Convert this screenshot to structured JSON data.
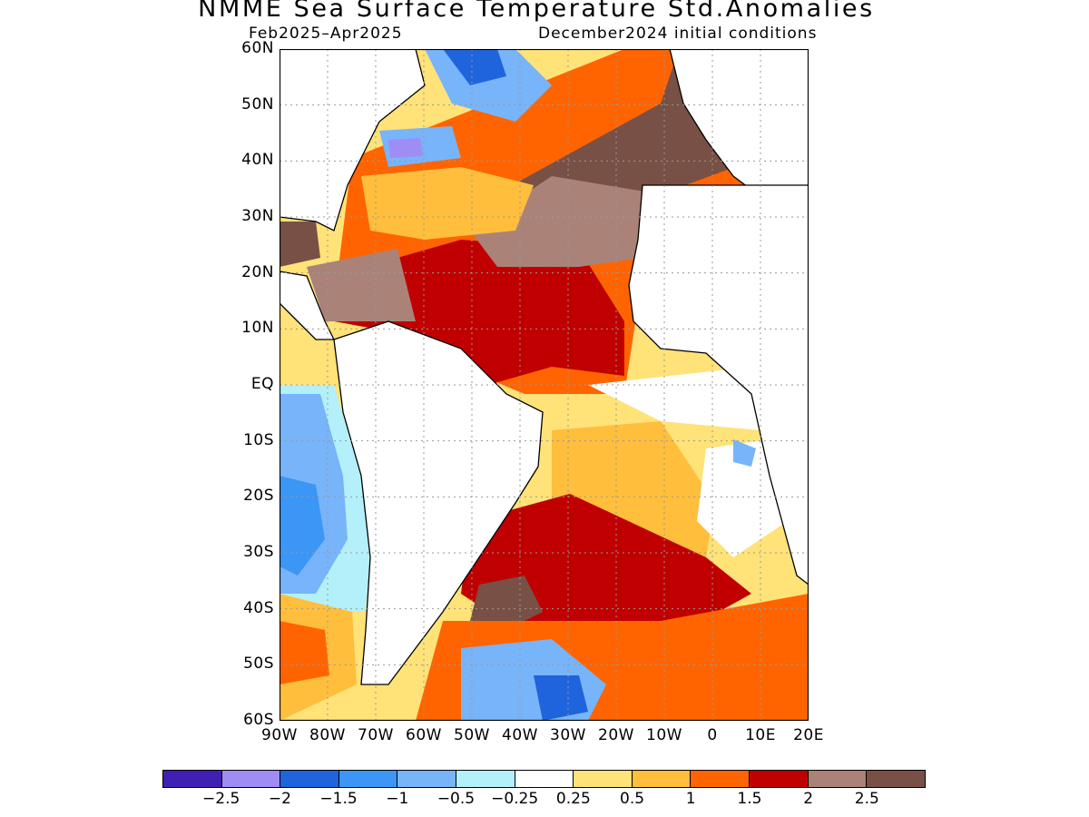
{
  "title": "NMME Sea Surface Temperature Std.Anomalies",
  "subtitle_left": "Feb2025–Apr2025",
  "subtitle_right": "December2024 initial conditions",
  "map": {
    "lat_labels": [
      "60N",
      "50N",
      "40N",
      "30N",
      "20N",
      "10N",
      "EQ",
      "10S",
      "20S",
      "30S",
      "40S",
      "50S",
      "60S"
    ],
    "lon_labels": [
      "90W",
      "80W",
      "70W",
      "60W",
      "50W",
      "40W",
      "30W",
      "20W",
      "10W",
      "0",
      "10E",
      "20E"
    ],
    "lat_range": [
      -60,
      60
    ],
    "lon_range": [
      -90,
      20
    ],
    "grid": "dotted",
    "region": "Atlantic Ocean"
  },
  "colorbar": {
    "colors": [
      "#3f1fb4",
      "#a08cf5",
      "#1f64dc",
      "#3c96f5",
      "#78b4fa",
      "#b4f0fa",
      "#ffffff",
      "#ffe278",
      "#ffbe3c",
      "#ff6400",
      "#c00000",
      "#aa8278",
      "#785046"
    ],
    "labels": [
      "−2.5",
      "−2",
      "−1.5",
      "−1",
      "−0.5",
      "−0.25",
      "0.25",
      "0.5",
      "1",
      "1.5",
      "2",
      "2.5"
    ]
  },
  "colors": {
    "land": "#ffffff",
    "coast": "#000000",
    "grid": "#999999"
  }
}
